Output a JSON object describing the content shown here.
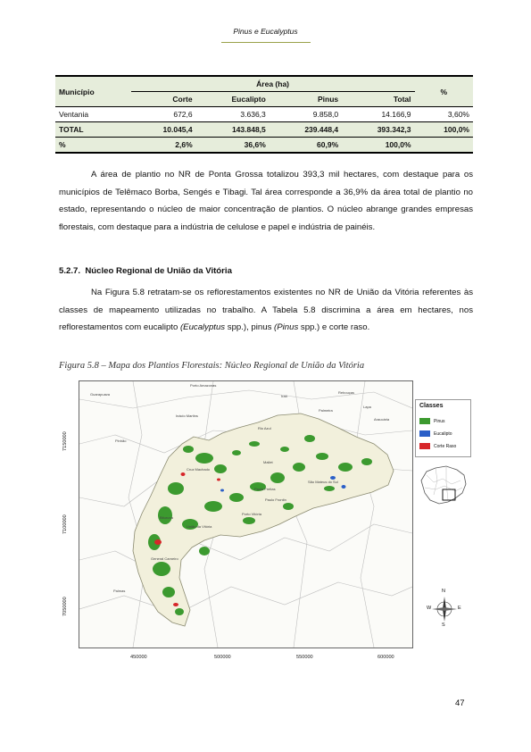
{
  "header": {
    "title_part1": "Pinus",
    "title_conj": " e ",
    "title_part2": "Eucalyptus"
  },
  "table": {
    "col_municipio": "Município",
    "col_area": "Área (ha)",
    "col_pct": "%",
    "sub_cols": [
      "Corte",
      "Eucalipto",
      "Pinus",
      "Total"
    ],
    "rows": [
      {
        "label": "Ventania",
        "values": [
          "672,6",
          "3.636,3",
          "9.858,0",
          "14.166,9",
          "3,60%"
        ]
      },
      {
        "label": "TOTAL",
        "values": [
          "10.045,4",
          "143.848,5",
          "239.448,4",
          "393.342,3",
          "100,0%"
        ]
      },
      {
        "label": "%",
        "values": [
          "2,6%",
          "36,6%",
          "60,9%",
          "100,0%",
          ""
        ]
      }
    ]
  },
  "paragraph1": "A área de plantio no NR de Ponta Grossa totalizou 393,3 mil hectares, com destaque para os municípios de Telêmaco Borba, Sengés e Tibagi. Tal área corresponde a 36,9% da área total de plantio no estado, representando o núcleo de maior concentração de plantios. O núcleo abrange grandes empresas florestais, com destaque para a indústria de celulose e papel e indústria de painéis.",
  "section": {
    "number": "5.2.7.",
    "title": "Núcleo Regional de União da Vitória"
  },
  "paragraph2": {
    "t1": "Na Figura 5.8 retratam-se os reflorestamentos existentes no NR de União da Vitória referentes às classes de mapeamento utilizadas no trabalho. A Tabela 5.8 discrimina a área em hectares, nos reflorestamentos com eucalipto ",
    "t2": "(Eucalyptus",
    "t3": " spp.), pinus ",
    "t4": "(Pinus",
    "t5": " spp.) e corte raso."
  },
  "figure": {
    "caption": "Figura 5.8 – Mapa dos Plantios Florestais: Núcleo Regional de União da Vitória",
    "legend_title": "Classes",
    "legend": [
      {
        "label": "Pinus",
        "color": "#3c9a2f"
      },
      {
        "label": "Eucalipto",
        "color": "#2a5fc8"
      },
      {
        "label": "Corte Raso",
        "color": "#d7262a"
      }
    ],
    "x_ticks": [
      "450000",
      "500000",
      "550000",
      "600000"
    ],
    "y_ticks": [
      "7150000",
      "7100000",
      "7050000"
    ],
    "places": [
      "Porto Amazonas",
      "Guarapuava",
      "Irati",
      "Rebouças",
      "Rio Azul",
      "Mallet",
      "São Mateus do Sul",
      "Cruz Machado",
      "União da Vitória",
      "Porto Vitória",
      "General Carneiro",
      "Palmas",
      "Bituruna",
      "Paulo Frontin",
      "Paula Freitas",
      "Lapa",
      "Araucária",
      "Palmeira",
      "Inácio Martins",
      "Pinhão"
    ],
    "compass": {
      "n": "N",
      "s": "S",
      "e": "E",
      "w": "W"
    }
  },
  "page_number": "47"
}
